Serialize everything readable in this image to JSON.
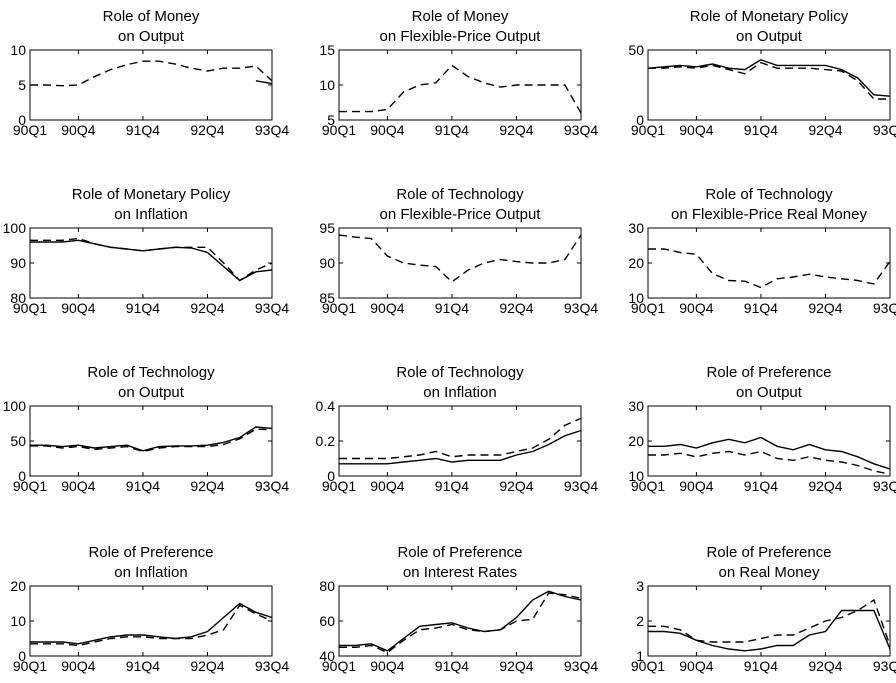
{
  "chart_data": [
    {
      "type": "line",
      "title": [
        "Role of Money",
        "on Output"
      ],
      "x": [
        "90Q1",
        "90Q2",
        "90Q3",
        "90Q4",
        "91Q1",
        "91Q2",
        "91Q3",
        "91Q4",
        "92Q1",
        "92Q2",
        "92Q3",
        "92Q4",
        "93Q1",
        "93Q2",
        "93Q3",
        "93Q4"
      ],
      "xticks": [
        "90Q1",
        "90Q4",
        "91Q4",
        "92Q4",
        "93Q4"
      ],
      "yticks": [
        0,
        5,
        10
      ],
      "ylim": [
        0,
        10
      ],
      "series": [
        {
          "style": "dashed",
          "values": [
            5.0,
            5.0,
            4.9,
            5.0,
            6.2,
            7.2,
            7.9,
            8.4,
            8.4,
            8.0,
            7.4,
            7.0,
            7.4,
            7.4,
            7.7,
            5.6
          ]
        },
        {
          "style": "solid",
          "values": [
            null,
            null,
            null,
            null,
            null,
            null,
            null,
            null,
            null,
            null,
            null,
            null,
            null,
            null,
            5.6,
            5.2
          ]
        }
      ]
    },
    {
      "type": "line",
      "title": [
        "Role of Money",
        "on Flexible-Price Output"
      ],
      "x": [
        "90Q1",
        "90Q2",
        "90Q3",
        "90Q4",
        "91Q1",
        "91Q2",
        "91Q3",
        "91Q4",
        "92Q1",
        "92Q2",
        "92Q3",
        "92Q4",
        "93Q1",
        "93Q2",
        "93Q3",
        "93Q4"
      ],
      "xticks": [
        "90Q1",
        "90Q4",
        "91Q4",
        "92Q4",
        "93Q4"
      ],
      "yticks": [
        5,
        10,
        15
      ],
      "ylim": [
        5,
        15
      ],
      "series": [
        {
          "style": "dashed",
          "values": [
            6.2,
            6.2,
            6.2,
            6.5,
            9.0,
            10.0,
            10.3,
            12.8,
            11.2,
            10.3,
            9.7,
            10.0,
            10.0,
            10.0,
            10.0,
            6.0
          ]
        }
      ]
    },
    {
      "type": "line",
      "title": [
        "Role of Monetary Policy",
        "on Output"
      ],
      "x": [
        "90Q1",
        "90Q2",
        "90Q3",
        "90Q4",
        "91Q1",
        "91Q2",
        "91Q3",
        "91Q4",
        "92Q1",
        "92Q2",
        "92Q3",
        "92Q4",
        "93Q1",
        "93Q2",
        "93Q3",
        "93Q4"
      ],
      "xticks": [
        "90Q1",
        "90Q4",
        "91Q4",
        "92Q4",
        "93Q4"
      ],
      "yticks": [
        0,
        50
      ],
      "ylim": [
        0,
        50
      ],
      "series": [
        {
          "style": "solid",
          "values": [
            37,
            38,
            39,
            38,
            40,
            37,
            36,
            43,
            39,
            39,
            39,
            39,
            36,
            30,
            18,
            17
          ]
        },
        {
          "style": "dashed",
          "values": [
            37,
            37,
            38,
            37,
            39,
            36,
            33,
            41,
            37,
            37,
            37,
            36,
            35,
            28,
            15,
            15
          ]
        }
      ]
    },
    {
      "type": "line",
      "title": [
        "Role of Monetary Policy",
        "on Inflation"
      ],
      "x": [
        "90Q1",
        "90Q2",
        "90Q3",
        "90Q4",
        "91Q1",
        "91Q2",
        "91Q3",
        "91Q4",
        "92Q1",
        "92Q2",
        "92Q3",
        "92Q4",
        "93Q1",
        "93Q2",
        "93Q3",
        "93Q4"
      ],
      "xticks": [
        "90Q1",
        "90Q4",
        "91Q4",
        "92Q4",
        "93Q4"
      ],
      "yticks": [
        80,
        90,
        100
      ],
      "ylim": [
        80,
        100
      ],
      "series": [
        {
          "style": "solid",
          "values": [
            96,
            96,
            96,
            96.5,
            95.5,
            94.5,
            94,
            93.5,
            94,
            94.5,
            94.3,
            93,
            89,
            85,
            87.5,
            88
          ]
        },
        {
          "style": "dashed",
          "values": [
            96.5,
            96.5,
            96.5,
            97,
            95.5,
            94.5,
            94,
            93.5,
            94,
            94.5,
            94.5,
            94.5,
            90,
            85,
            88,
            90
          ]
        }
      ]
    },
    {
      "type": "line",
      "title": [
        "Role of Technology",
        "on Flexible-Price Output"
      ],
      "x": [
        "90Q1",
        "90Q2",
        "90Q3",
        "90Q4",
        "91Q1",
        "91Q2",
        "91Q3",
        "91Q4",
        "92Q1",
        "92Q2",
        "92Q3",
        "92Q4",
        "93Q1",
        "93Q2",
        "93Q3",
        "93Q4"
      ],
      "xticks": [
        "90Q1",
        "90Q4",
        "91Q4",
        "92Q4",
        "93Q4"
      ],
      "yticks": [
        85,
        90,
        95
      ],
      "ylim": [
        85,
        95
      ],
      "series": [
        {
          "style": "dashed",
          "values": [
            94,
            93.7,
            93.5,
            91,
            90,
            89.7,
            89.5,
            87.3,
            89,
            90,
            90.5,
            90.2,
            90,
            90,
            90.5,
            94
          ]
        }
      ]
    },
    {
      "type": "line",
      "title": [
        "Role of Technology",
        "on Flexible-Price Real Money"
      ],
      "x": [
        "90Q1",
        "90Q2",
        "90Q3",
        "90Q4",
        "91Q1",
        "91Q2",
        "91Q3",
        "91Q4",
        "92Q1",
        "92Q2",
        "92Q3",
        "92Q4",
        "93Q1",
        "93Q2",
        "93Q3",
        "93Q4"
      ],
      "xticks": [
        "90Q1",
        "90Q4",
        "91Q4",
        "92Q4",
        "93Q4"
      ],
      "yticks": [
        10,
        20,
        30
      ],
      "ylim": [
        10,
        30
      ],
      "series": [
        {
          "style": "dashed",
          "values": [
            24,
            24,
            23,
            22.5,
            17,
            15,
            14.8,
            13,
            15.5,
            16,
            16.8,
            16,
            15.5,
            15,
            14,
            20.5
          ]
        }
      ]
    },
    {
      "type": "line",
      "title": [
        "Role of Technology",
        "on Output"
      ],
      "x": [
        "90Q1",
        "90Q2",
        "90Q3",
        "90Q4",
        "91Q1",
        "91Q2",
        "91Q3",
        "91Q4",
        "92Q1",
        "92Q2",
        "92Q3",
        "92Q4",
        "93Q1",
        "93Q2",
        "93Q3",
        "93Q4"
      ],
      "xticks": [
        "90Q1",
        "90Q4",
        "91Q4",
        "92Q4",
        "93Q4"
      ],
      "yticks": [
        0,
        50,
        100
      ],
      "ylim": [
        0,
        100
      ],
      "series": [
        {
          "style": "solid",
          "values": [
            44,
            44,
            42,
            44,
            40,
            42,
            44,
            36,
            42,
            43,
            43,
            44,
            48,
            55,
            70,
            68
          ]
        },
        {
          "style": "dashed",
          "values": [
            43,
            43,
            40,
            42,
            38,
            40,
            42,
            35,
            40,
            42,
            42,
            42,
            45,
            53,
            67,
            66
          ]
        }
      ]
    },
    {
      "type": "line",
      "title": [
        "Role of Technology",
        "on Inflation"
      ],
      "x": [
        "90Q1",
        "90Q2",
        "90Q3",
        "90Q4",
        "91Q1",
        "91Q2",
        "91Q3",
        "91Q4",
        "92Q1",
        "92Q2",
        "92Q3",
        "92Q4",
        "93Q1",
        "93Q2",
        "93Q3",
        "93Q4"
      ],
      "xticks": [
        "90Q1",
        "90Q4",
        "91Q4",
        "92Q4",
        "93Q4"
      ],
      "yticks": [
        0,
        0.2,
        0.4
      ],
      "ylim": [
        0,
        0.4
      ],
      "series": [
        {
          "style": "solid",
          "values": [
            0.07,
            0.07,
            0.07,
            0.07,
            0.08,
            0.09,
            0.1,
            0.08,
            0.09,
            0.09,
            0.09,
            0.12,
            0.14,
            0.18,
            0.23,
            0.26
          ]
        },
        {
          "style": "dashed",
          "values": [
            0.1,
            0.1,
            0.1,
            0.1,
            0.11,
            0.12,
            0.14,
            0.11,
            0.12,
            0.12,
            0.12,
            0.14,
            0.16,
            0.21,
            0.29,
            0.33
          ]
        }
      ]
    },
    {
      "type": "line",
      "title": [
        "Role of Preference",
        "on Output"
      ],
      "x": [
        "90Q1",
        "90Q2",
        "90Q3",
        "90Q4",
        "91Q1",
        "91Q2",
        "91Q3",
        "91Q4",
        "92Q1",
        "92Q2",
        "92Q3",
        "92Q4",
        "93Q1",
        "93Q2",
        "93Q3",
        "93Q4"
      ],
      "xticks": [
        "90Q1",
        "90Q4",
        "91Q4",
        "92Q4",
        "93Q4"
      ],
      "yticks": [
        10,
        20,
        30
      ],
      "ylim": [
        10,
        30
      ],
      "series": [
        {
          "style": "solid",
          "values": [
            18.5,
            18.5,
            19,
            18,
            19.5,
            20.5,
            19.5,
            21,
            18.5,
            17.5,
            19,
            17.5,
            17,
            15.5,
            13.5,
            12
          ]
        },
        {
          "style": "dashed",
          "values": [
            16,
            16,
            16.5,
            15.5,
            16.5,
            17,
            16,
            17,
            15,
            14.5,
            15.5,
            14.5,
            14,
            13,
            11.5,
            10.5
          ]
        }
      ]
    },
    {
      "type": "line",
      "title": [
        "Role of Preference",
        "on Inflation"
      ],
      "x": [
        "90Q1",
        "90Q2",
        "90Q3",
        "90Q4",
        "91Q1",
        "91Q2",
        "91Q3",
        "91Q4",
        "92Q1",
        "92Q2",
        "92Q3",
        "92Q4",
        "93Q1",
        "93Q2",
        "93Q3",
        "93Q4"
      ],
      "xticks": [
        "90Q1",
        "90Q4",
        "91Q4",
        "92Q4",
        "93Q4"
      ],
      "yticks": [
        0,
        10,
        20
      ],
      "ylim": [
        0,
        20
      ],
      "series": [
        {
          "style": "solid",
          "values": [
            4,
            4,
            4,
            3.5,
            4.5,
            5.5,
            6,
            6,
            5.5,
            5,
            5.5,
            7,
            11,
            15,
            12.5,
            11
          ]
        },
        {
          "style": "dashed",
          "values": [
            3.5,
            3.5,
            3.5,
            3,
            4,
            5,
            5.5,
            5.5,
            5,
            5,
            5,
            6,
            7.5,
            14.5,
            12,
            10
          ]
        }
      ]
    },
    {
      "type": "line",
      "title": [
        "Role of Preference",
        "on Interest Rates"
      ],
      "x": [
        "90Q1",
        "90Q2",
        "90Q3",
        "90Q4",
        "91Q1",
        "91Q2",
        "91Q3",
        "91Q4",
        "92Q1",
        "92Q2",
        "92Q3",
        "92Q4",
        "93Q1",
        "93Q2",
        "93Q3",
        "93Q4"
      ],
      "xticks": [
        "90Q1",
        "90Q4",
        "91Q4",
        "92Q4",
        "93Q4"
      ],
      "yticks": [
        40,
        60,
        80
      ],
      "ylim": [
        40,
        80
      ],
      "series": [
        {
          "style": "solid",
          "values": [
            46,
            46,
            47,
            43,
            50,
            57,
            58,
            59,
            56,
            54,
            55,
            62,
            72,
            77,
            74,
            72
          ]
        },
        {
          "style": "dashed",
          "values": [
            45,
            45,
            46,
            42,
            49,
            55,
            56,
            58,
            55,
            54,
            55,
            60,
            61,
            76,
            75,
            73
          ]
        }
      ]
    },
    {
      "type": "line",
      "title": [
        "Role of Preference",
        "on Real Money"
      ],
      "x": [
        "90Q1",
        "90Q2",
        "90Q3",
        "90Q4",
        "91Q1",
        "91Q2",
        "91Q3",
        "91Q4",
        "92Q1",
        "92Q2",
        "92Q3",
        "92Q4",
        "93Q1",
        "93Q2",
        "93Q3",
        "93Q4"
      ],
      "xticks": [
        "90Q1",
        "90Q4",
        "91Q4",
        "92Q4",
        "93Q4"
      ],
      "yticks": [
        1,
        2,
        3
      ],
      "ylim": [
        1,
        3
      ],
      "series": [
        {
          "style": "solid",
          "values": [
            1.7,
            1.7,
            1.65,
            1.45,
            1.3,
            1.2,
            1.15,
            1.2,
            1.3,
            1.3,
            1.6,
            1.7,
            2.3,
            2.3,
            2.3,
            1.2
          ]
        },
        {
          "style": "dashed",
          "values": [
            1.85,
            1.85,
            1.75,
            1.45,
            1.4,
            1.4,
            1.4,
            1.5,
            1.6,
            1.6,
            1.8,
            2.0,
            2.1,
            2.3,
            2.6,
            1.3
          ]
        }
      ]
    }
  ]
}
